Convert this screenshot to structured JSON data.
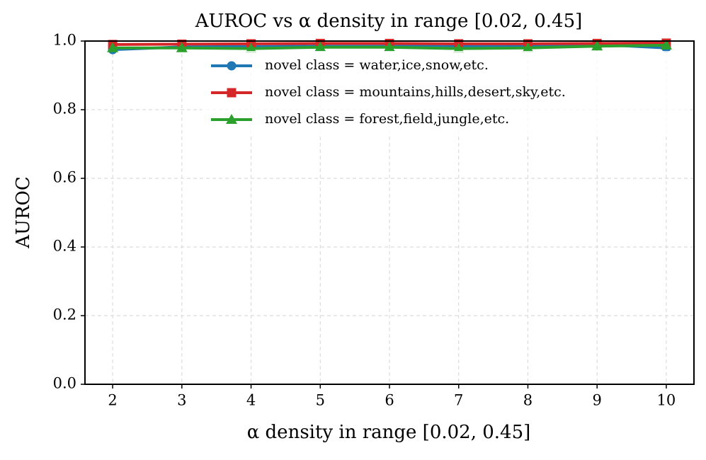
{
  "chart_data": {
    "type": "line",
    "title": "AUROC vs α density in range [0.02, 0.45]",
    "x_label": "α density in range [0.02, 0.45]",
    "y_label": "AUROC",
    "x": [
      2,
      3,
      4,
      5,
      6,
      7,
      8,
      9,
      10
    ],
    "series": [
      {
        "name": "novel class = water,ice,snow,etc.",
        "color": "#1f77b4",
        "marker": "circle",
        "values": [
          0.975,
          0.983,
          0.984,
          0.985,
          0.985,
          0.985,
          0.986,
          0.99,
          0.98
        ]
      },
      {
        "name": "novel class = mountains,hills,desert,sky,etc.",
        "color": "#d62728",
        "marker": "square",
        "values": [
          0.99,
          0.991,
          0.992,
          0.993,
          0.993,
          0.992,
          0.992,
          0.993,
          0.994
        ]
      },
      {
        "name": "novel class = forest,field,jungle,etc.",
        "color": "#2ca02c",
        "marker": "triangle",
        "values": [
          0.98,
          0.98,
          0.978,
          0.982,
          0.982,
          0.978,
          0.98,
          0.985,
          0.988
        ]
      }
    ],
    "xlim": [
      1.6,
      10.4
    ],
    "xticks": [
      2,
      3,
      4,
      5,
      6,
      7,
      8,
      9,
      10
    ],
    "ylim": [
      0,
      1
    ],
    "yticks": [
      {
        "value": 0,
        "label": "0.0"
      },
      0.2,
      0.4,
      0.6,
      0.8,
      {
        "value": 1,
        "label": "1.0"
      }
    ],
    "grid": true,
    "legend": "upper center"
  }
}
